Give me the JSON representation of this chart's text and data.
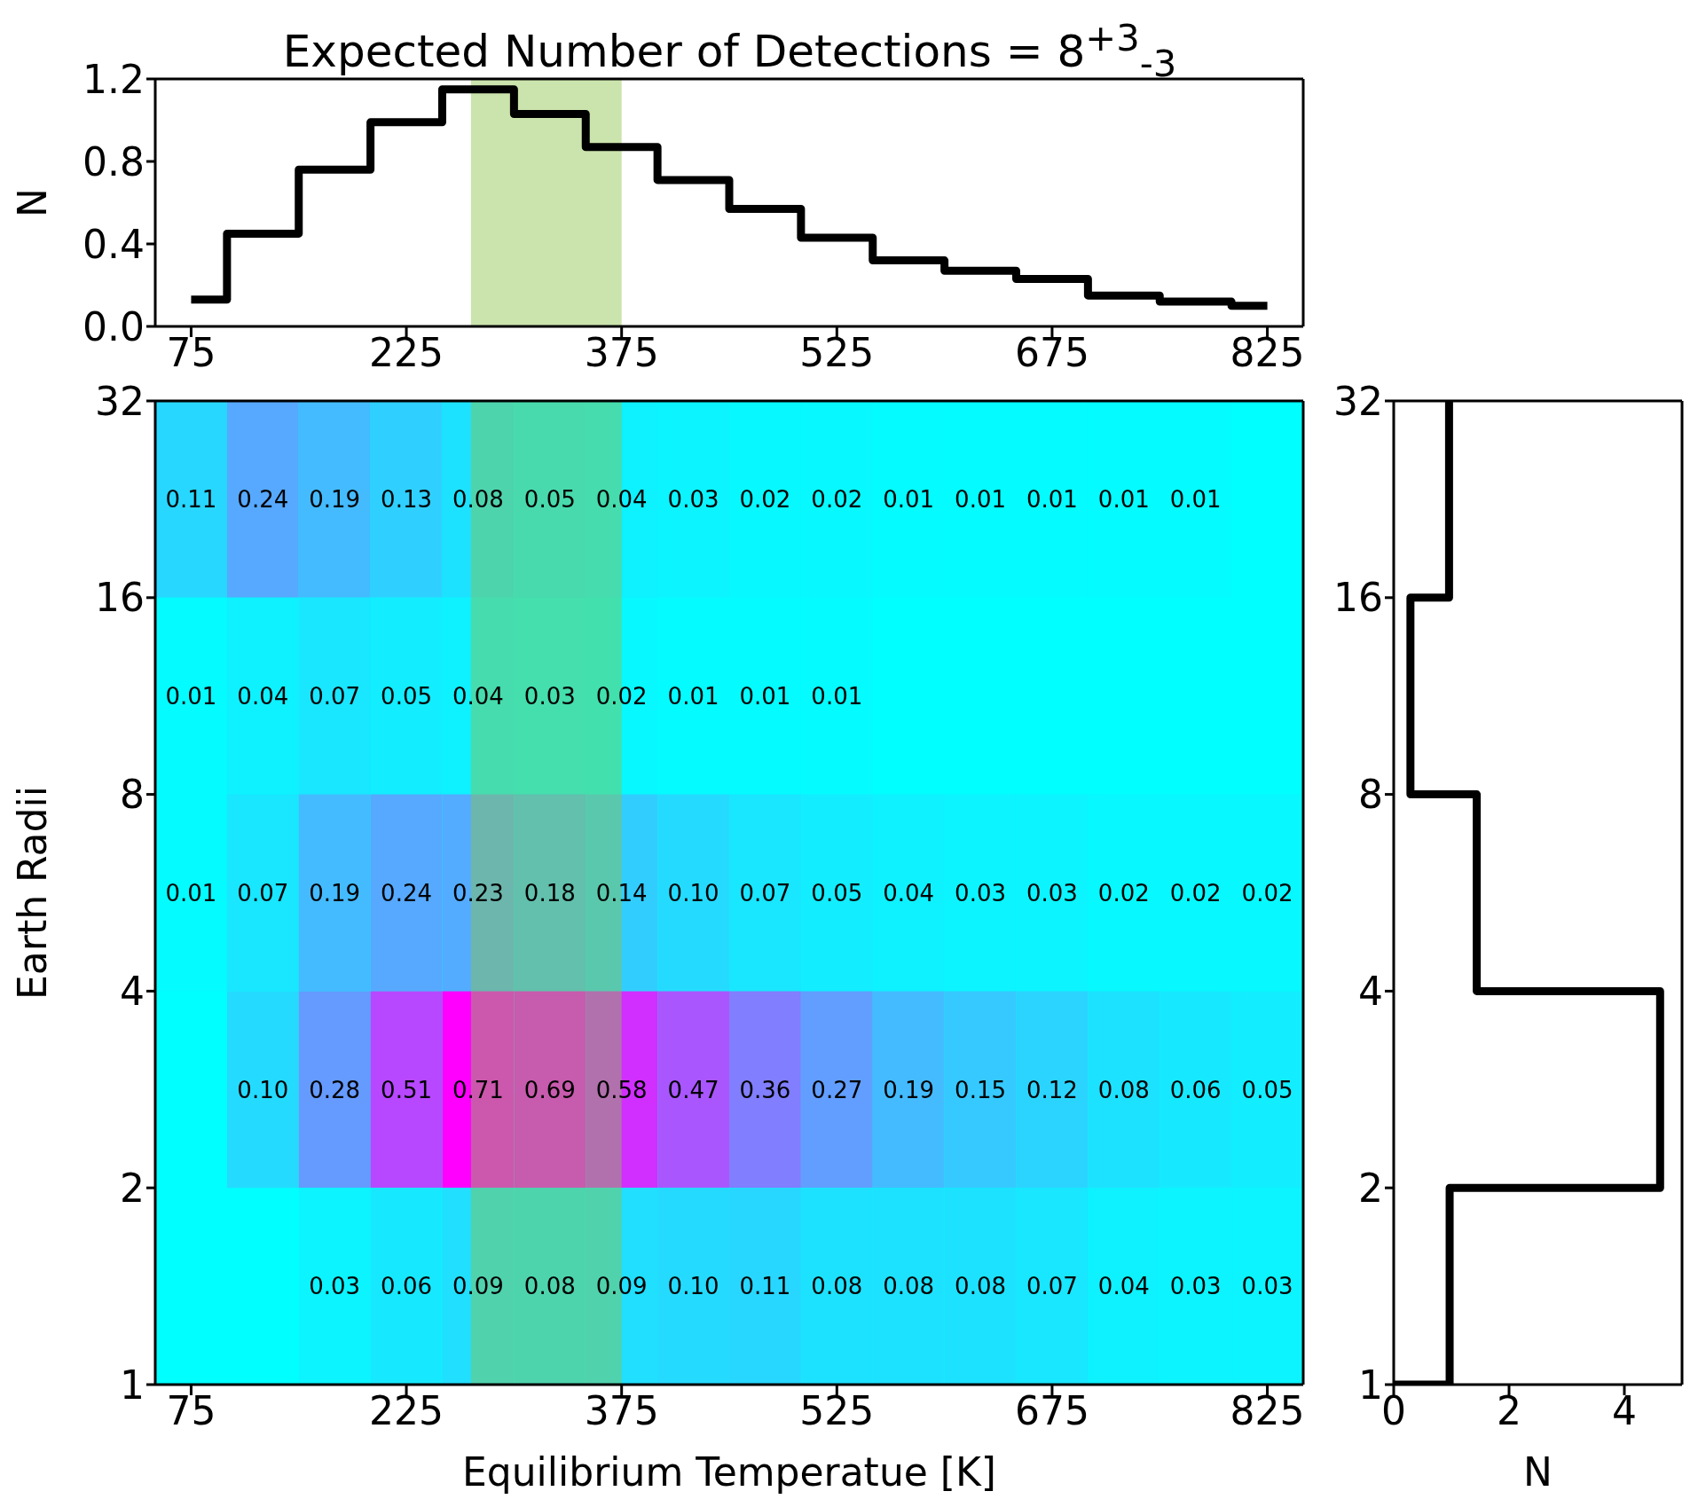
{
  "chart_data": [
    {
      "type": "step",
      "title": "Expected Number of Detections = 8$^{+3}$$_{-3}$",
      "ylabel": "N",
      "x": [
        75,
        125,
        175,
        225,
        275,
        325,
        375,
        425,
        475,
        525,
        575,
        625,
        675,
        725,
        775,
        825
      ],
      "values": [
        0.13,
        0.45,
        0.76,
        0.99,
        1.15,
        1.03,
        0.87,
        0.71,
        0.57,
        0.43,
        0.32,
        0.27,
        0.23,
        0.15,
        0.12,
        0.1
      ],
      "color": "#000000",
      "xlim": [
        50,
        850
      ],
      "xticks": [
        75,
        225,
        375,
        525,
        675,
        825
      ],
      "ylim": [
        0,
        1.2
      ],
      "yticks": [
        {
          "value": 0,
          "label": "0.0"
        },
        0.4,
        0.8,
        1.2
      ],
      "bands": [
        {
          "axis": "x",
          "from": 270,
          "to": 375,
          "color": "#8bc34a"
        }
      ]
    },
    {
      "type": "heatmap",
      "xlabel": "Equilibrium Temperatue [K]",
      "ylabel": "Earth Radii",
      "categories": [
        "75",
        null,
        null,
        "225",
        null,
        null,
        "375",
        null,
        null,
        "525",
        null,
        null,
        "675",
        null,
        null,
        "825"
      ],
      "cells": [
        [
          0.11,
          0.24,
          0.19,
          0.13,
          0.08,
          0.05,
          0.04,
          0.03,
          0.02,
          0.02,
          0.01,
          0.01,
          0.01,
          0.01,
          0.01,
          null
        ],
        [
          0.01,
          0.04,
          0.07,
          0.05,
          0.04,
          0.03,
          0.02,
          0.01,
          0.01,
          0.01,
          null,
          null,
          null,
          null,
          null,
          null
        ],
        [
          0.01,
          0.07,
          0.19,
          0.24,
          0.23,
          0.18,
          0.14,
          0.1,
          0.07,
          0.05,
          0.04,
          0.03,
          0.03,
          0.02,
          0.02,
          0.02
        ],
        [
          null,
          0.1,
          0.28,
          0.51,
          0.71,
          0.69,
          0.58,
          0.47,
          0.36,
          0.27,
          0.19,
          0.15,
          0.12,
          0.08,
          0.06,
          0.05
        ],
        [
          null,
          null,
          0.03,
          0.06,
          0.09,
          0.08,
          0.09,
          0.1,
          0.11,
          0.08,
          0.08,
          0.08,
          0.07,
          0.04,
          0.03,
          0.03
        ]
      ],
      "cell_labels": [
        [
          "0.11",
          "0.24",
          "0.19",
          "0.13",
          "0.08",
          "0.05",
          "0.04",
          "0.03",
          "0.02",
          "0.02",
          "0.01",
          "0.01",
          "0.01",
          "0.01",
          "0.01",
          null
        ],
        [
          "0.01",
          "0.04",
          "0.07",
          "0.05",
          "0.04",
          "0.03",
          "0.02",
          "0.01",
          "0.01",
          "0.01",
          null,
          null,
          null,
          null,
          null,
          null
        ],
        [
          "0.01",
          "0.07",
          "0.19",
          "0.24",
          "0.23",
          "0.18",
          "0.14",
          "0.10",
          "0.07",
          "0.05",
          "0.04",
          "0.03",
          "0.03",
          "0.02",
          "0.02",
          "0.02"
        ],
        [
          null,
          "0.10",
          "0.28",
          "0.51",
          "0.71",
          "0.69",
          "0.58",
          "0.47",
          "0.36",
          "0.27",
          "0.19",
          "0.15",
          "0.12",
          "0.08",
          "0.06",
          "0.05"
        ],
        [
          null,
          null,
          "0.03",
          "0.06",
          "0.09",
          "0.08",
          "0.09",
          "0.10",
          "0.11",
          "0.08",
          "0.08",
          "0.08",
          "0.07",
          "0.04",
          "0.03",
          "0.03"
        ]
      ],
      "ylim": [
        1,
        32
      ],
      "yticks": [
        1,
        2,
        4,
        8,
        16,
        32
      ],
      "log": "y"
    },
    {
      "type": "histogram",
      "orientation": "horizontal",
      "xlabel": "N",
      "bins": [
        1,
        2,
        4,
        8,
        16,
        32
      ],
      "values": [
        0.97,
        4.62,
        1.44,
        0.29,
        0.96
      ],
      "color": "#000000",
      "xlim": [
        0,
        5
      ],
      "xticks": [
        0,
        2,
        4
      ],
      "ylim": [
        1,
        32
      ],
      "yticks": [
        1,
        2,
        4,
        8,
        16,
        32
      ],
      "log": "y"
    }
  ]
}
